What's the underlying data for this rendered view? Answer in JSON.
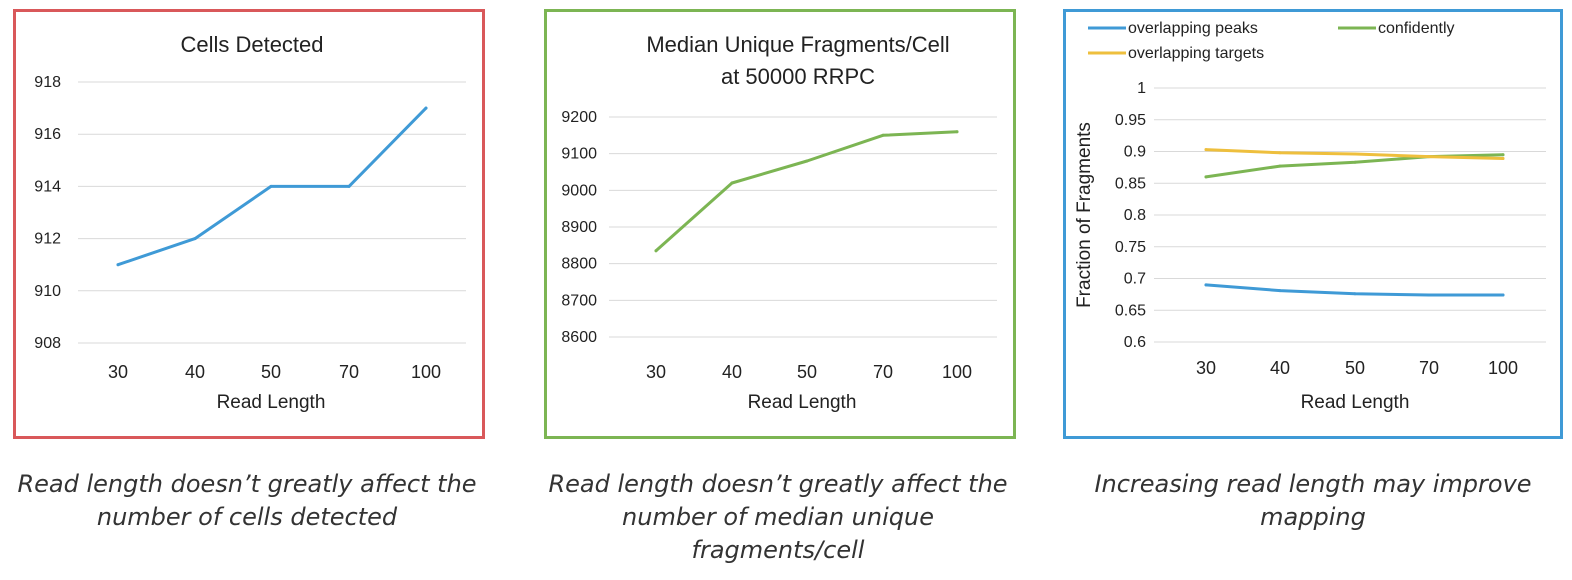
{
  "colors": {
    "panel_borders": [
      "#d9585a",
      "#7cb553",
      "#3f9ad6"
    ],
    "series": [
      "#3f9ad6",
      "#7cb553",
      "#eebf3d"
    ],
    "grid": "#d9d9d9"
  },
  "captions": [
    "Read length doesn’t greatly affect the number of cells detected",
    "Read length doesn’t greatly affect the number of median unique fragments/cell",
    "Increasing read length may improve mapping"
  ],
  "chart_data": [
    {
      "type": "line",
      "title": "Cells Detected",
      "xlabel": "Read Length",
      "ylabel": "",
      "categories": [
        "30",
        "40",
        "50",
        "70",
        "100"
      ],
      "ylim": [
        908,
        918
      ],
      "yticks": [
        "908",
        "910",
        "912",
        "914",
        "916",
        "918"
      ],
      "grid": true,
      "series": [
        {
          "name": "",
          "color": "#3f9ad6",
          "values": [
            911,
            912,
            914,
            914,
            917
          ]
        }
      ]
    },
    {
      "type": "line",
      "title_lines": [
        "Median Unique Fragments/Cell",
        "at 50000 RRPC"
      ],
      "xlabel": "Read Length",
      "ylabel": "",
      "categories": [
        "30",
        "40",
        "50",
        "70",
        "100"
      ],
      "ylim": [
        8600,
        9200
      ],
      "yticks": [
        "8600",
        "8700",
        "8800",
        "8900",
        "9000",
        "9100",
        "9200"
      ],
      "grid": true,
      "series": [
        {
          "name": "",
          "color": "#7cb553",
          "values": [
            8835,
            9020,
            9080,
            9150,
            9160
          ]
        }
      ]
    },
    {
      "type": "line",
      "title": "",
      "xlabel": "Read Length",
      "ylabel": "Fraction of Fragments",
      "categories": [
        "30",
        "40",
        "50",
        "70",
        "100"
      ],
      "ylim": [
        0.6,
        1
      ],
      "yticks": [
        "0.6",
        "0.65",
        "0.7",
        "0.75",
        "0.8",
        "0.85",
        "0.9",
        "0.95",
        "1"
      ],
      "grid": true,
      "legend_position": "top",
      "series": [
        {
          "name": "overlapping peaks",
          "color": "#3f9ad6",
          "values": [
            0.69,
            0.681,
            0.676,
            0.674,
            0.674
          ]
        },
        {
          "name": "confidently",
          "color": "#7cb553",
          "values": [
            0.86,
            0.877,
            0.883,
            0.892,
            0.895
          ]
        },
        {
          "name": "overlapping targets",
          "color": "#eebf3d",
          "values": [
            0.903,
            0.898,
            0.896,
            0.892,
            0.889
          ]
        }
      ]
    }
  ]
}
